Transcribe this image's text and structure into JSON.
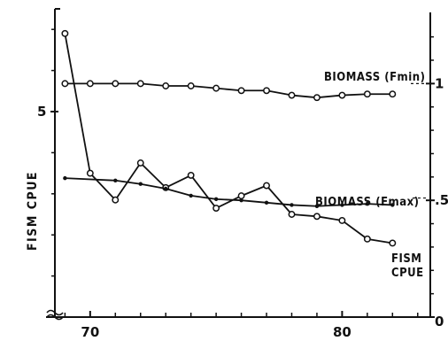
{
  "chart_data": {
    "type": "line",
    "x": [
      69,
      70,
      71,
      72,
      73,
      74,
      75,
      76,
      77,
      78,
      79,
      80,
      81,
      82
    ],
    "xlim": [
      68.6,
      83.5
    ],
    "x_ticks": [
      70,
      80
    ],
    "y_left_label": "FISM CPUE",
    "y_left_ticks": [
      {
        "value": 5,
        "label": "5"
      }
    ],
    "y_left_lim": [
      0,
      7.5
    ],
    "y_right_ticks": [
      {
        "value": 1.0,
        "label": "1"
      },
      {
        "value": 0.5,
        "label": ".5"
      },
      {
        "value": 0.0,
        "label": "0"
      }
    ],
    "y_right_lim": [
      0,
      1.32
    ],
    "left_axis_break": true,
    "series": [
      {
        "name": "FISM CPUE",
        "label_lines": [
          "FISM",
          "CPUE"
        ],
        "axis": "left",
        "marker": "open-circle",
        "values": [
          6.9,
          3.5,
          2.85,
          3.75,
          3.15,
          3.45,
          2.65,
          2.95,
          3.2,
          2.5,
          2.45,
          2.35,
          1.9,
          1.8
        ]
      },
      {
        "name": "BIOMASS (Fmin)",
        "axis": "right",
        "marker": "open-circle",
        "values": [
          1.0,
          1.0,
          1.0,
          1.0,
          0.99,
          0.99,
          0.98,
          0.97,
          0.97,
          0.95,
          0.94,
          0.95,
          0.955,
          0.955
        ]
      },
      {
        "name": "BIOMASS (Fmax)",
        "axis": "right",
        "marker": "dot",
        "values": [
          0.595,
          null,
          0.585,
          0.57,
          0.55,
          0.52,
          0.505,
          0.5,
          0.49,
          0.48,
          0.475,
          0.48,
          0.485,
          0.48
        ]
      }
    ],
    "grid": false
  }
}
